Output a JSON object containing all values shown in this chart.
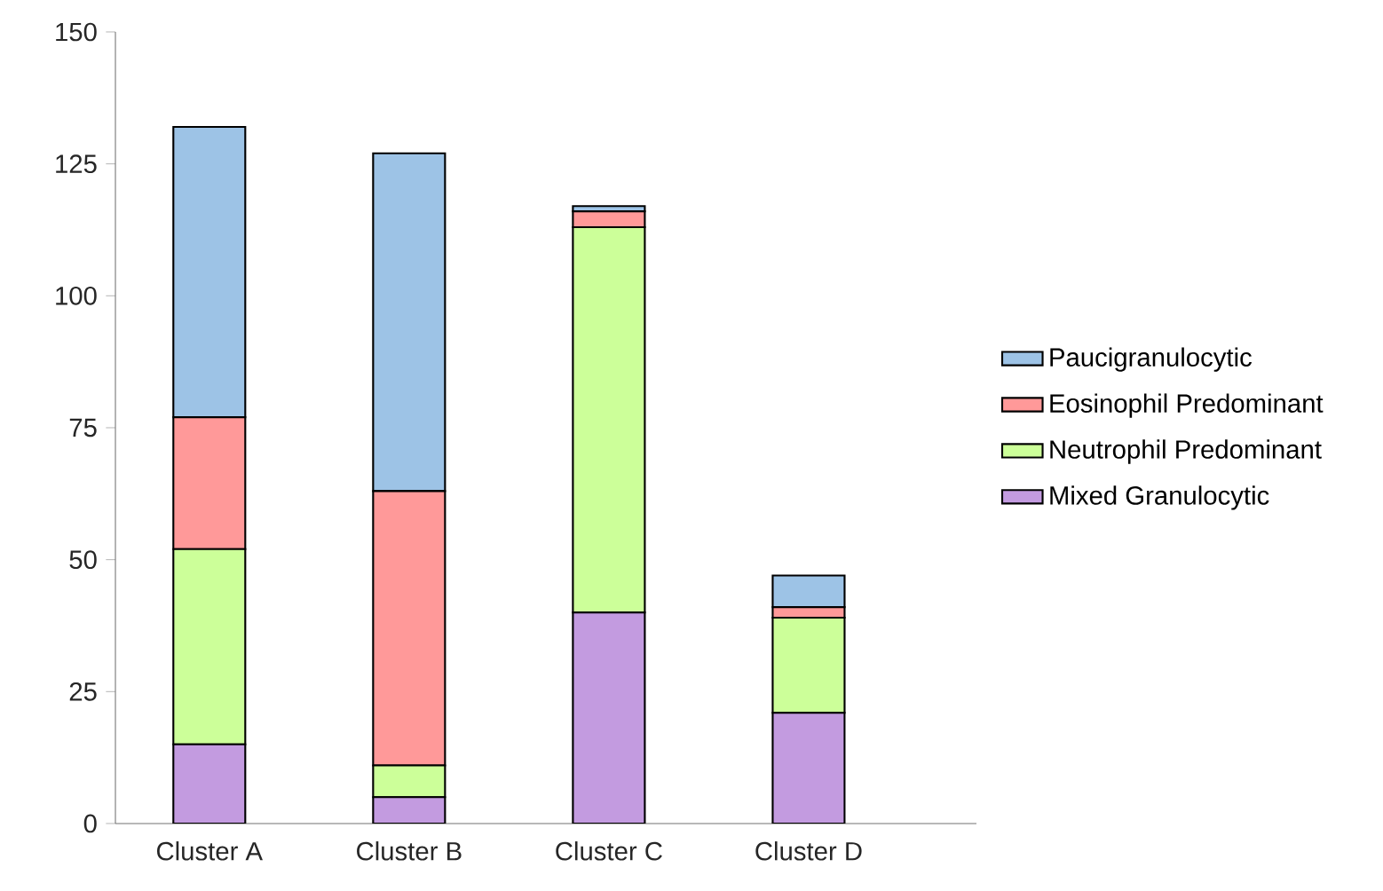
{
  "chart_data": {
    "type": "bar",
    "stacked": true,
    "categories": [
      "Cluster A",
      "Cluster B",
      "Cluster C",
      "Cluster D"
    ],
    "series": [
      {
        "name": "Mixed Granulocytic",
        "color": "#c39be0",
        "values": [
          15,
          5,
          40,
          21
        ]
      },
      {
        "name": "Neutrophil Predominant",
        "color": "#ccff99",
        "values": [
          37,
          6,
          73,
          18
        ]
      },
      {
        "name": "Eosinophil Predominant",
        "color": "#ff9999",
        "values": [
          25,
          52,
          3,
          2
        ]
      },
      {
        "name": "Paucigranulocytic",
        "color": "#9dc3e6",
        "values": [
          55,
          64,
          1,
          6
        ]
      }
    ],
    "ylim": [
      0,
      150
    ],
    "yticks": [
      0,
      25,
      50,
      75,
      100,
      125,
      150
    ],
    "legend": "right"
  }
}
